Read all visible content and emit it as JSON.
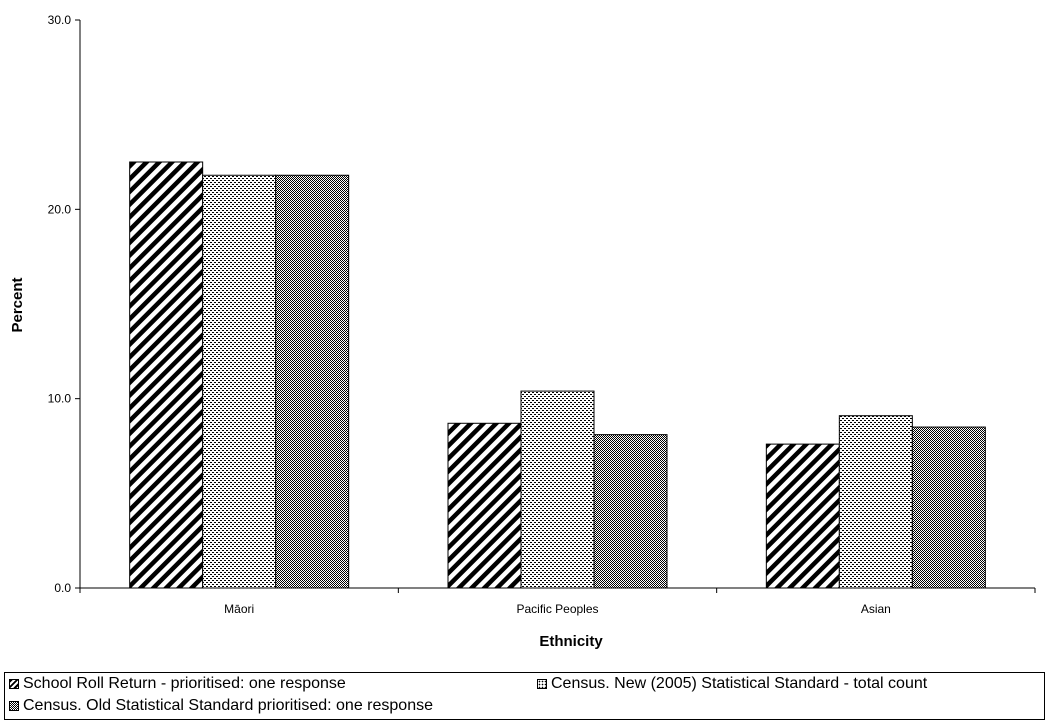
{
  "chart_data": {
    "type": "bar",
    "title": "",
    "xlabel": "Ethnicity",
    "ylabel": "Percent",
    "ylim": [
      0,
      30
    ],
    "yticks": [
      "0.0",
      "10.0",
      "20.0",
      "30.0"
    ],
    "categories": [
      "Māori",
      "Pacific Peoples",
      "Asian"
    ],
    "series": [
      {
        "name": "School Roll Return - prioritised: one response",
        "values": [
          22.5,
          8.7,
          7.6
        ],
        "pattern": "diagonal-hatch"
      },
      {
        "name": "Census. New (2005) Statistical Standard - total count",
        "values": [
          21.8,
          10.4,
          9.1
        ],
        "pattern": "dotted"
      },
      {
        "name": "Census. Old Statistical Standard prioritised: one response",
        "values": [
          21.8,
          8.1,
          8.5
        ],
        "pattern": "checkered"
      }
    ],
    "grid": false,
    "legend": "bottom"
  }
}
